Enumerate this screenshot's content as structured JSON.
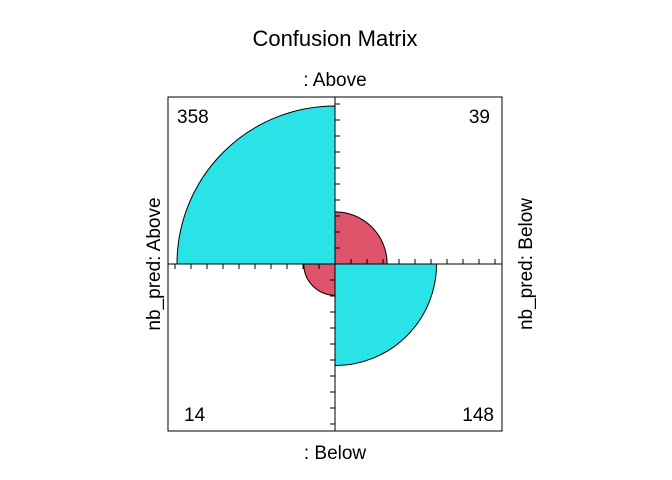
{
  "chart_data": {
    "type": "fourfold",
    "title": "Confusion Matrix",
    "top_label": ": Above",
    "bottom_label": ": Below",
    "left_label": "nb_pred: Above",
    "right_label": "nb_pred: Below",
    "cells": [
      {
        "quadrant": "top-left",
        "value": 358,
        "label": "358",
        "color": "#29e3e6"
      },
      {
        "quadrant": "top-right",
        "value": 39,
        "label": "39",
        "color": "#df536b"
      },
      {
        "quadrant": "bottom-left",
        "value": 14,
        "label": "14",
        "color": "#df536b"
      },
      {
        "quadrant": "bottom-right",
        "value": 148,
        "label": "148",
        "color": "#29e3e6"
      }
    ],
    "max_value": 358
  }
}
